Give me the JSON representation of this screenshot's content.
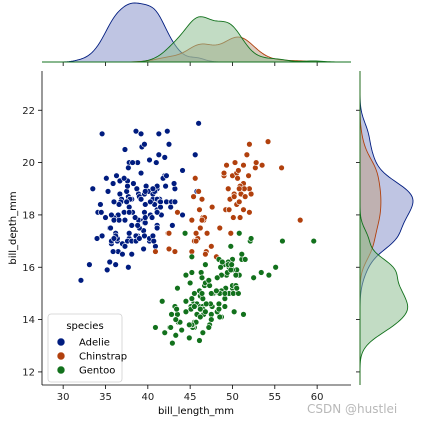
{
  "chart_data": {
    "type": "scatter",
    "xlabel": "bill_length_mm",
    "ylabel": "bill_depth_mm",
    "xlim": [
      27.5,
      64
    ],
    "ylim": [
      11.5,
      23.5
    ],
    "xticks": [
      30,
      35,
      40,
      45,
      50,
      55,
      60
    ],
    "yticks": [
      12,
      14,
      16,
      18,
      20,
      22
    ],
    "legend": {
      "title": "species",
      "placement": "lower-left",
      "entries": [
        "Adelie",
        "Chinstrap",
        "Gentoo"
      ]
    },
    "marginals": {
      "type": "kde",
      "top": "x",
      "right": "y",
      "fill": true
    },
    "series": [
      {
        "name": "Adelie",
        "color": "#001c7f",
        "fill_color": "#8a96cc",
        "x": [
          39.1,
          39.5,
          40.3,
          36.7,
          39.3,
          38.9,
          39.2,
          34.1,
          42.0,
          37.8,
          37.8,
          41.1,
          38.6,
          34.6,
          36.6,
          38.7,
          42.5,
          34.4,
          46.0,
          37.8,
          37.7,
          35.9,
          38.2,
          38.8,
          35.3,
          40.6,
          40.5,
          37.9,
          40.5,
          39.5,
          37.2,
          39.5,
          40.9,
          36.4,
          39.2,
          38.8,
          42.2,
          37.6,
          39.8,
          36.5,
          40.8,
          36.0,
          44.1,
          37.0,
          39.6,
          41.1,
          37.5,
          36.0,
          42.3,
          39.6,
          40.1,
          35.0,
          42.0,
          34.5,
          41.4,
          39.0,
          40.6,
          36.5,
          37.6,
          35.7,
          41.3,
          37.6,
          41.1,
          36.4,
          41.6,
          35.5,
          41.1,
          35.9,
          41.8,
          33.5,
          39.7,
          39.6,
          45.8,
          35.5,
          42.8,
          40.9,
          37.2,
          36.2,
          42.1,
          34.6,
          42.9,
          36.7,
          35.1,
          37.3,
          41.3,
          36.3,
          36.9,
          38.3,
          38.9,
          35.7,
          41.1,
          34.0,
          39.6,
          36.2,
          40.8,
          38.1,
          40.3,
          33.1,
          43.2,
          35.0,
          41.0,
          37.7,
          37.8,
          37.9,
          39.7,
          38.6,
          38.2,
          38.1,
          43.2,
          38.1,
          45.6,
          39.7,
          42.2,
          39.6,
          42.7,
          38.6,
          37.3,
          35.7,
          41.1,
          36.2,
          37.7,
          40.2,
          41.4,
          35.2,
          40.6,
          38.8,
          41.5,
          39.0,
          44.1,
          38.5,
          43.1,
          36.8,
          37.5,
          38.1,
          41.1,
          35.6,
          40.2,
          37.0,
          39.7,
          40.2,
          40.6,
          32.1,
          40.7,
          37.3,
          39.0,
          39.2,
          36.6,
          36.0,
          37.8,
          36.0,
          41.5
        ],
        "y": [
          18.7,
          17.4,
          18.0,
          19.3,
          20.6,
          17.8,
          19.6,
          18.1,
          20.2,
          17.1,
          17.3,
          17.6,
          21.2,
          21.1,
          17.8,
          19.0,
          20.7,
          18.4,
          21.5,
          18.3,
          18.7,
          19.2,
          18.1,
          17.2,
          18.9,
          18.6,
          17.9,
          18.6,
          18.9,
          16.7,
          18.1,
          17.8,
          18.9,
          17.0,
          21.1,
          20.0,
          18.5,
          19.3,
          19.1,
          18.0,
          18.4,
          18.5,
          19.7,
          16.9,
          18.8,
          19.0,
          18.9,
          17.9,
          21.2,
          17.7,
          18.9,
          17.9,
          19.5,
          18.1,
          18.6,
          17.5,
          18.8,
          16.6,
          19.1,
          16.9,
          21.1,
          17.0,
          18.2,
          17.1,
          18.0,
          16.2,
          19.1,
          16.6,
          19.4,
          19.0,
          18.4,
          17.2,
          18.9,
          17.5,
          18.5,
          16.8,
          19.4,
          16.1,
          19.1,
          17.2,
          17.6,
          18.8,
          19.4,
          17.8,
          20.3,
          19.5,
          18.6,
          19.2,
          18.8,
          18.0,
          18.1,
          17.1,
          18.1,
          17.3,
          18.9,
          18.6,
          18.5,
          16.1,
          18.5,
          17.9,
          20.0,
          16.0,
          20.0,
          18.6,
          18.9,
          17.2,
          20.0,
          17.0,
          19.0,
          16.5,
          20.3,
          17.7,
          19.5,
          20.7,
          18.3,
          17.0,
          20.5,
          17.0,
          18.6,
          17.2,
          19.8,
          17.0,
          18.5,
          15.9,
          19.0,
          17.6,
          18.3,
          17.1,
          18.0,
          17.9,
          19.2,
          18.5,
          18.5,
          17.6,
          17.5,
          17.5,
          20.1,
          16.5,
          17.9,
          17.1,
          17.2,
          15.5,
          17.0,
          16.8,
          18.7,
          18.6,
          18.4,
          17.8,
          18.1,
          17.1,
          18.5
        ]
      },
      {
        "name": "Chinstrap",
        "color": "#b1400d",
        "fill_color": "#bfa089",
        "x": [
          46.5,
          50.0,
          51.3,
          45.4,
          52.7,
          45.2,
          46.1,
          51.3,
          46.0,
          51.3,
          46.6,
          51.7,
          47.0,
          52.0,
          45.9,
          50.5,
          50.3,
          58.0,
          46.4,
          49.2,
          42.4,
          48.5,
          43.2,
          50.6,
          46.7,
          52.0,
          50.5,
          49.5,
          46.4,
          52.8,
          40.9,
          54.2,
          42.5,
          51.0,
          49.7,
          47.5,
          47.6,
          52.0,
          46.9,
          53.5,
          49.0,
          46.2,
          50.9,
          45.5,
          50.9,
          50.8,
          50.1,
          49.0,
          51.5,
          49.8,
          48.1,
          51.4,
          45.7,
          50.7,
          42.5,
          52.2,
          45.2,
          49.3,
          50.2,
          45.6,
          51.9,
          46.8,
          45.7,
          55.8,
          43.5,
          49.6,
          50.8,
          50.2
        ],
        "y": [
          17.9,
          19.5,
          19.2,
          18.7,
          19.8,
          17.8,
          18.2,
          18.2,
          18.9,
          19.9,
          17.8,
          20.3,
          17.3,
          18.1,
          17.1,
          19.6,
          20.0,
          17.8,
          18.6,
          18.2,
          17.3,
          17.5,
          16.6,
          19.4,
          17.9,
          19.0,
          18.4,
          19.0,
          17.8,
          20.0,
          16.6,
          20.8,
          16.7,
          18.8,
          18.6,
          16.8,
          18.3,
          20.7,
          16.6,
          19.9,
          19.5,
          17.5,
          19.1,
          17.0,
          17.9,
          18.5,
          17.9,
          19.6,
          18.7,
          17.3,
          16.4,
          19.0,
          17.3,
          19.7,
          17.3,
          18.8,
          16.6,
          19.9,
          18.8,
          19.4,
          19.5,
          16.5,
          17.0,
          19.8,
          18.1,
          18.2,
          19.0,
          18.7
        ]
      },
      {
        "name": "Gentoo",
        "color": "#12711c",
        "fill_color": "#8fbf93",
        "x": [
          46.1,
          50.0,
          48.7,
          50.0,
          47.6,
          46.5,
          45.4,
          46.7,
          43.3,
          46.8,
          40.9,
          49.0,
          45.5,
          48.4,
          45.8,
          49.3,
          42.0,
          49.2,
          46.2,
          48.7,
          50.2,
          45.1,
          46.5,
          46.3,
          42.9,
          46.1,
          44.5,
          47.8,
          48.2,
          50.0,
          47.3,
          42.8,
          45.1,
          59.6,
          49.1,
          48.4,
          42.6,
          44.4,
          44.0,
          48.7,
          42.7,
          49.6,
          45.3,
          49.6,
          50.5,
          43.6,
          45.5,
          50.5,
          44.9,
          45.2,
          46.6,
          48.5,
          45.1,
          50.1,
          46.5,
          45.0,
          43.8,
          45.5,
          43.2,
          50.4,
          45.3,
          46.2,
          45.7,
          54.3,
          45.8,
          49.8,
          46.2,
          49.5,
          43.5,
          50.7,
          47.7,
          46.4,
          48.2,
          46.5,
          46.4,
          48.6,
          47.5,
          51.1,
          45.2,
          45.2,
          49.1,
          52.5,
          47.4,
          50.0,
          44.9,
          50.8,
          43.4,
          51.3,
          47.5,
          52.1,
          47.5,
          52.2,
          45.5,
          49.5,
          44.5,
          50.8,
          49.4,
          46.9,
          48.4,
          51.1,
          48.5,
          55.9,
          47.2,
          49.1,
          47.3,
          46.8,
          41.7,
          53.4,
          43.3,
          48.1,
          50.5,
          49.8,
          43.5,
          51.5,
          46.2,
          55.1,
          44.5,
          48.8,
          47.2,
          46.8,
          50.4,
          45.2,
          49.9
        ],
        "y": [
          13.2,
          16.3,
          14.1,
          15.2,
          14.5,
          13.5,
          14.6,
          15.3,
          13.4,
          15.4,
          13.7,
          16.1,
          13.7,
          14.6,
          14.6,
          15.7,
          13.5,
          15.2,
          14.5,
          15.1,
          14.3,
          14.5,
          14.5,
          15.8,
          13.1,
          15.1,
          14.3,
          15.0,
          14.3,
          15.3,
          15.3,
          14.2,
          14.5,
          17.0,
          14.8,
          16.3,
          13.7,
          17.3,
          13.6,
          15.7,
          13.7,
          16.0,
          13.7,
          15.0,
          15.9,
          13.9,
          13.9,
          15.9,
          13.3,
          15.8,
          14.2,
          14.1,
          14.4,
          15.0,
          14.4,
          15.4,
          13.9,
          15.0,
          14.5,
          15.3,
          13.8,
          14.9,
          13.9,
          15.7,
          14.2,
          16.8,
          14.4,
          16.2,
          14.2,
          15.0,
          15.0,
          15.6,
          15.6,
          14.8,
          15.0,
          16.0,
          14.2,
          16.3,
          13.8,
          16.4,
          14.5,
          15.6,
          14.6,
          15.9,
          13.8,
          17.3,
          14.4,
          14.2,
          14.0,
          17.0,
          15.0,
          17.1,
          14.5,
          16.1,
          14.7,
          15.7,
          15.8,
          14.6,
          14.4,
          16.5,
          15.0,
          17.0,
          15.5,
          15.0,
          13.8,
          16.1,
          14.7,
          15.8,
          14.0,
          15.1,
          15.2,
          15.9,
          15.2,
          16.3,
          14.1,
          16.0,
          15.7,
          16.2,
          13.7,
          14.3,
          15.7,
          14.8,
          16.1
        ]
      }
    ]
  },
  "watermark": "CSDN @hustlei"
}
